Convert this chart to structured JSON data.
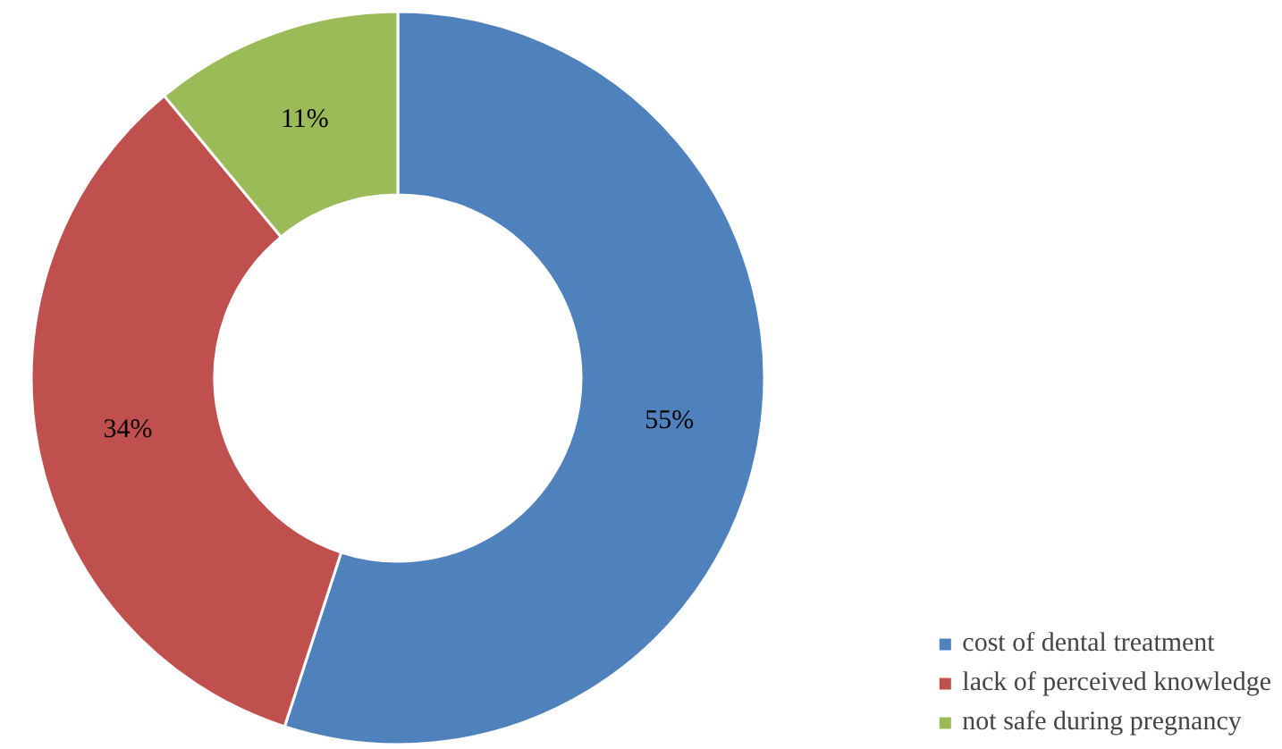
{
  "chart_data": {
    "type": "donut",
    "categories": [
      "cost of dental treatment",
      "lack of perceived knowledge",
      "not safe during pregnancy"
    ],
    "values": [
      55,
      34,
      11
    ],
    "colors": [
      "#4f81bd",
      "#c0504d",
      "#9bbb59"
    ],
    "value_labels": [
      "55%",
      "34%",
      "11%"
    ],
    "legend": "bottom right"
  }
}
